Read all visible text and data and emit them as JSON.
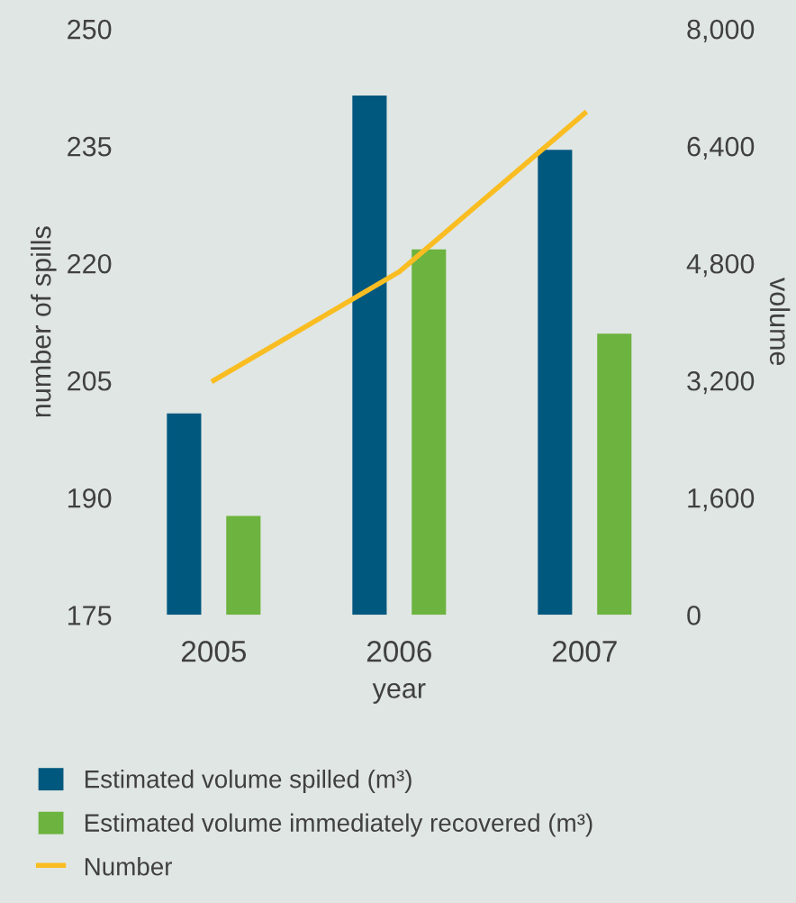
{
  "chart_data": {
    "type": "bar",
    "xlabel": "year",
    "ylabel": "number of spills",
    "y2label": "volume",
    "categories": [
      "2005",
      "2006",
      "2007"
    ],
    "series": [
      {
        "name": "Estimated volume spilled (m³)",
        "color": "#00587f",
        "values": [
          2750,
          7090,
          6350
        ],
        "axis": "y2"
      },
      {
        "name": "Estimated volume immediately recovered (m³)",
        "color": "#6cb33f",
        "values": [
          1350,
          4990,
          3840
        ],
        "axis": "y2"
      },
      {
        "name": "Number",
        "type": "line",
        "color": "#f9bd22",
        "values": [
          205,
          218.9,
          239.2
        ],
        "axis": "y"
      }
    ],
    "ylim": [
      175,
      250
    ],
    "yticks": [
      175,
      190,
      205,
      220,
      235,
      250
    ],
    "y2lim": [
      0,
      8000
    ],
    "y2ticks": [
      0,
      {
        "value": 1600,
        "label": "1,600"
      },
      {
        "value": 3200,
        "label": "3,200"
      },
      {
        "value": 4800,
        "label": "4,800"
      },
      {
        "value": 6400,
        "label": "6,400"
      },
      {
        "value": 8000,
        "label": "8,000"
      }
    ],
    "grid": false,
    "legend": "bottom"
  }
}
